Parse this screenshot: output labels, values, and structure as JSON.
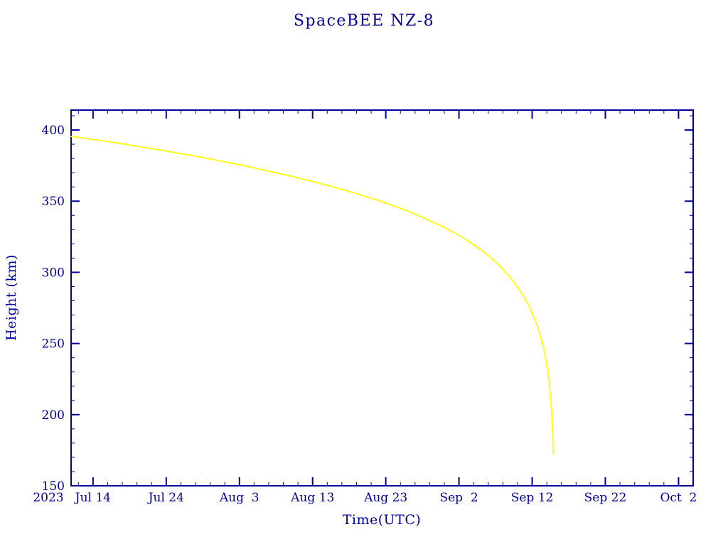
{
  "chart_data": {
    "type": "line",
    "title": "SpaceBEE NZ-8",
    "xlabel": "Time(UTC)",
    "ylabel": "Height (km)",
    "axis_color": "#00009C",
    "background_color": "#FFFFFF",
    "grid": false,
    "legend": null,
    "x_unit": "days along axis spanning 2023 Jul 11 to 2023 Oct 4",
    "xlim": [
      0,
      85
    ],
    "ylim": [
      150,
      414
    ],
    "x_year_label": "2023",
    "x_ticks": [
      {
        "value": 3,
        "label": "Jul 14"
      },
      {
        "value": 13,
        "label": "Jul 24"
      },
      {
        "value": 23,
        "label": "Aug  3"
      },
      {
        "value": 33,
        "label": "Aug 13"
      },
      {
        "value": 43,
        "label": "Aug 23"
      },
      {
        "value": 53,
        "label": "Sep  2"
      },
      {
        "value": 63,
        "label": "Sep 12"
      },
      {
        "value": 73,
        "label": "Sep 22"
      },
      {
        "value": 83,
        "label": "Oct  2"
      }
    ],
    "x_minor_tick_step": 2,
    "y_ticks": [
      150,
      200,
      250,
      300,
      350,
      400
    ],
    "y_minor_tick_step": 10,
    "series": [
      {
        "name": "Height (km)",
        "color": "#FFFF00",
        "points": [
          [
            0,
            395.5
          ],
          [
            2,
            394.1
          ],
          [
            4,
            392.6
          ],
          [
            6,
            391.1
          ],
          [
            8,
            389.5
          ],
          [
            10,
            387.8
          ],
          [
            12,
            386.1
          ],
          [
            14,
            384.3
          ],
          [
            16,
            382.5
          ],
          [
            18,
            380.6
          ],
          [
            20,
            378.6
          ],
          [
            22,
            376.6
          ],
          [
            24,
            374.5
          ],
          [
            26,
            372.3
          ],
          [
            28,
            370.0
          ],
          [
            30,
            367.6
          ],
          [
            32,
            365.1
          ],
          [
            34,
            362.5
          ],
          [
            36,
            359.7
          ],
          [
            38,
            356.8
          ],
          [
            40,
            353.7
          ],
          [
            42,
            350.4
          ],
          [
            44,
            346.9
          ],
          [
            46,
            343.1
          ],
          [
            48,
            338.6
          ],
          [
            50,
            334.0
          ],
          [
            52,
            328.8
          ],
          [
            53,
            325.9
          ],
          [
            54,
            322.8
          ],
          [
            55,
            319.4
          ],
          [
            56,
            315.7
          ],
          [
            57,
            311.6
          ],
          [
            58,
            307.1
          ],
          [
            59,
            302.0
          ],
          [
            60,
            296.2
          ],
          [
            60.5,
            293.0
          ],
          [
            61,
            289.5
          ],
          [
            61.5,
            285.7
          ],
          [
            62,
            281.5
          ],
          [
            62.4,
            277.8
          ],
          [
            62.8,
            273.6
          ],
          [
            63.2,
            268.9
          ],
          [
            63.5,
            265.0
          ],
          [
            63.8,
            260.6
          ],
          [
            64,
            257.4
          ],
          [
            64.2,
            253.9
          ],
          [
            64.4,
            250.0
          ],
          [
            64.6,
            245.6
          ],
          [
            64.8,
            240.5
          ],
          [
            65,
            234.6
          ],
          [
            65.15,
            229.5
          ],
          [
            65.3,
            223.5
          ],
          [
            65.4,
            218.8
          ],
          [
            65.5,
            213.2
          ],
          [
            65.6,
            206.4
          ],
          [
            65.7,
            197.8
          ],
          [
            65.77,
            189.8
          ],
          [
            65.82,
            182.8
          ],
          [
            65.85,
            177.5
          ],
          [
            65.87,
            172.5
          ]
        ]
      }
    ]
  }
}
